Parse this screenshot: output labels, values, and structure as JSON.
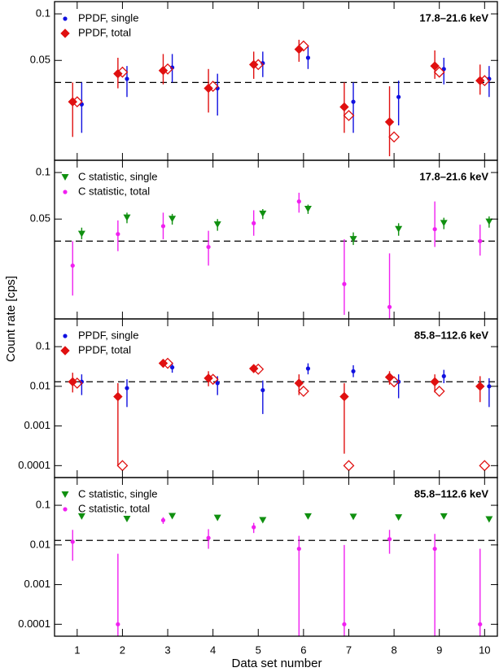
{
  "xlabel": "Data set number",
  "ylabel": "Count rate [cps]",
  "xlim": [
    0.5,
    10.3
  ],
  "xticks": [
    1,
    2,
    3,
    4,
    5,
    6,
    7,
    8,
    9,
    10
  ],
  "chart_data": [
    {
      "type": "scatter",
      "log_y": true,
      "annotation": "17.8–21.6 keV",
      "ylim": [
        0.0113,
        0.12
      ],
      "yticks": [
        0.05,
        0.1
      ],
      "reference_line": 0.036,
      "x": [
        1,
        2,
        3,
        4,
        5,
        6,
        7,
        8,
        9,
        10
      ],
      "series": [
        {
          "name": "PPDF, single",
          "color": "#1010e0",
          "marker": "circle",
          "values": [
            0.026,
            0.038,
            0.045,
            0.033,
            0.048,
            0.052,
            0.027,
            0.029,
            0.044,
            0.038
          ],
          "lower": [
            0.017,
            0.029,
            0.036,
            0.022,
            0.039,
            0.044,
            0.017,
            0.019,
            0.035,
            0.029
          ],
          "upper": [
            0.036,
            0.046,
            0.055,
            0.041,
            0.057,
            0.062,
            0.036,
            0.037,
            0.052,
            0.046
          ]
        },
        {
          "name": "PPDF, total",
          "color": "#e01010",
          "marker": "diamond",
          "values": [
            0.027,
            0.041,
            0.043,
            0.033,
            0.047,
            0.059,
            0.025,
            0.02,
            0.046,
            0.037
          ],
          "lower": [
            0.016,
            0.033,
            0.035,
            0.023,
            0.038,
            0.049,
            0.017,
            0.012,
            0.038,
            0.03
          ],
          "upper": [
            0.036,
            0.052,
            0.055,
            0.044,
            0.057,
            0.068,
            0.036,
            0.034,
            0.058,
            0.047
          ],
          "open_values": [
            0.027,
            0.042,
            0.044,
            0.034,
            0.047,
            0.062,
            0.022,
            0.016,
            0.042,
            0.037
          ]
        }
      ]
    },
    {
      "type": "scatter",
      "log_y": true,
      "annotation": "17.8–21.6 keV",
      "ylim": [
        0.0113,
        0.12
      ],
      "yticks": [
        0.05,
        0.1
      ],
      "reference_line": 0.036,
      "x": [
        1,
        2,
        3,
        4,
        5,
        6,
        7,
        8,
        9,
        10
      ],
      "series": [
        {
          "name": "C statistic, single",
          "color": "#109010",
          "marker": "triangle",
          "values": [
            0.04,
            0.051,
            0.05,
            0.046,
            0.054,
            0.058,
            0.037,
            0.043,
            0.047,
            0.048
          ],
          "lower": [
            0.037,
            0.047,
            0.046,
            0.042,
            0.05,
            0.054,
            0.034,
            0.039,
            0.043,
            0.044
          ],
          "upper": [
            0.044,
            0.055,
            0.054,
            0.05,
            0.058,
            0.062,
            0.041,
            0.047,
            0.051,
            0.052
          ]
        },
        {
          "name": "C statistic, total",
          "color": "#f020f0",
          "marker": "circle",
          "values": [
            0.025,
            0.04,
            0.045,
            0.033,
            0.047,
            0.065,
            0.019,
            0.0135,
            0.043,
            0.036
          ],
          "lower": [
            0.016,
            0.031,
            0.037,
            0.025,
            0.039,
            0.055,
            0.012,
            0.011,
            0.033,
            0.029
          ],
          "upper": [
            0.036,
            0.049,
            0.055,
            0.042,
            0.057,
            0.074,
            0.037,
            0.03,
            0.065,
            0.046
          ]
        }
      ]
    },
    {
      "type": "scatter",
      "log_y": true,
      "annotation": "85.8–112.6 keV",
      "ylim": [
        5e-05,
        0.5
      ],
      "yticks": [
        0.0001,
        0.001,
        0.01,
        0.1
      ],
      "reference_line": 0.013,
      "x": [
        1,
        2,
        3,
        4,
        5,
        6,
        7,
        8,
        9,
        10
      ],
      "series": [
        {
          "name": "PPDF, single",
          "color": "#1010e0",
          "marker": "circle",
          "values": [
            0.013,
            0.009,
            0.03,
            0.012,
            0.008,
            0.028,
            0.024,
            0.013,
            0.018,
            0.01
          ],
          "lower": [
            0.006,
            0.003,
            0.022,
            0.006,
            0.002,
            0.02,
            0.017,
            0.005,
            0.012,
            0.003
          ],
          "upper": [
            0.02,
            0.015,
            0.04,
            0.018,
            0.014,
            0.038,
            0.034,
            0.02,
            0.026,
            0.016
          ]
        },
        {
          "name": "PPDF, total",
          "color": "#e01010",
          "marker": "diamond",
          "values": [
            0.013,
            0.0055,
            0.038,
            0.016,
            0.028,
            0.012,
            0.0055,
            0.017,
            0.013,
            0.01
          ],
          "lower": [
            0.007,
            0.0001,
            0.03,
            0.01,
            0.022,
            0.006,
            0.0002,
            0.011,
            0.007,
            0.004
          ],
          "upper": [
            0.022,
            0.012,
            0.048,
            0.024,
            0.035,
            0.02,
            0.012,
            0.024,
            0.02,
            0.018
          ],
          "open_values": [
            0.012,
            0.0001,
            0.038,
            0.015,
            0.027,
            0.0075,
            0.0001,
            0.013,
            0.0075,
            0.0001
          ]
        }
      ]
    },
    {
      "type": "scatter",
      "log_y": true,
      "annotation": "85.8–112.6 keV",
      "ylim": [
        5e-05,
        0.5
      ],
      "yticks": [
        0.0001,
        0.001,
        0.01,
        0.1
      ],
      "reference_line": 0.013,
      "x": [
        1,
        2,
        3,
        4,
        5,
        6,
        7,
        8,
        9,
        10
      ],
      "series": [
        {
          "name": "C statistic, single",
          "color": "#109010",
          "marker": "triangle",
          "values": [
            0.052,
            0.045,
            0.053,
            0.048,
            0.042,
            0.052,
            0.051,
            0.049,
            0.052,
            0.044
          ]
        },
        {
          "name": "C statistic, total",
          "color": "#f020f0",
          "marker": "circle",
          "values": [
            0.012,
            0.0001,
            0.042,
            0.015,
            0.028,
            0.008,
            0.0001,
            0.014,
            0.008,
            0.0001
          ],
          "lower": [
            0.004,
            1e-05,
            0.034,
            0.008,
            0.02,
            1e-05,
            1e-05,
            0.006,
            1e-05,
            1e-05
          ],
          "upper": [
            0.024,
            0.006,
            0.05,
            0.025,
            0.036,
            0.017,
            0.01,
            0.024,
            0.019,
            0.008
          ]
        }
      ]
    }
  ]
}
